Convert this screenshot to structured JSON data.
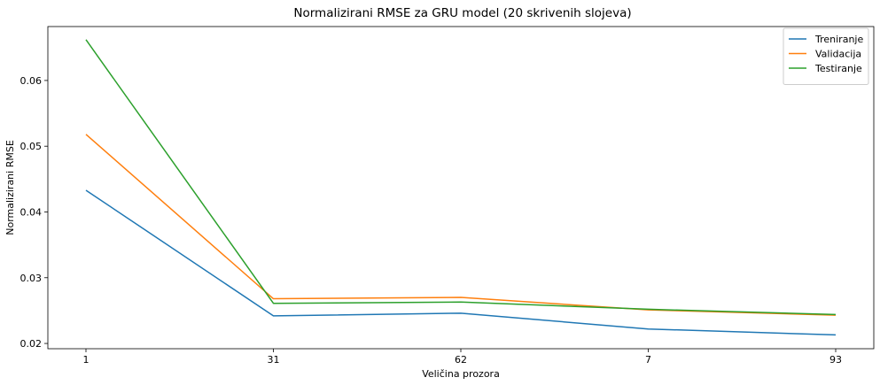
{
  "chart_data": {
    "type": "line",
    "title": "Normalizirani RMSE za GRU model (20 skrivenih slojeva)",
    "xlabel": "Veličina prozora",
    "ylabel": "Normalizirani RMSE",
    "categories": [
      "1",
      "31",
      "62",
      "7",
      "93"
    ],
    "ylim": [
      0.0192,
      0.0682
    ],
    "yticks": [
      "0.02",
      "0.03",
      "0.04",
      "0.05",
      "0.06"
    ],
    "ytick_values": [
      0.02,
      0.03,
      0.04,
      0.05,
      0.06
    ],
    "grid": false,
    "legend_position": "top-right",
    "series": [
      {
        "name": "Treniranje",
        "color": "#1f77b4",
        "values": [
          0.0433,
          0.0242,
          0.0246,
          0.0222,
          0.0213
        ]
      },
      {
        "name": "Validacija",
        "color": "#ff7f0e",
        "values": [
          0.0518,
          0.0268,
          0.027,
          0.0251,
          0.0243
        ]
      },
      {
        "name": "Testiranje",
        "color": "#2ca02c",
        "values": [
          0.0662,
          0.0261,
          0.0263,
          0.0252,
          0.0244
        ]
      }
    ]
  }
}
